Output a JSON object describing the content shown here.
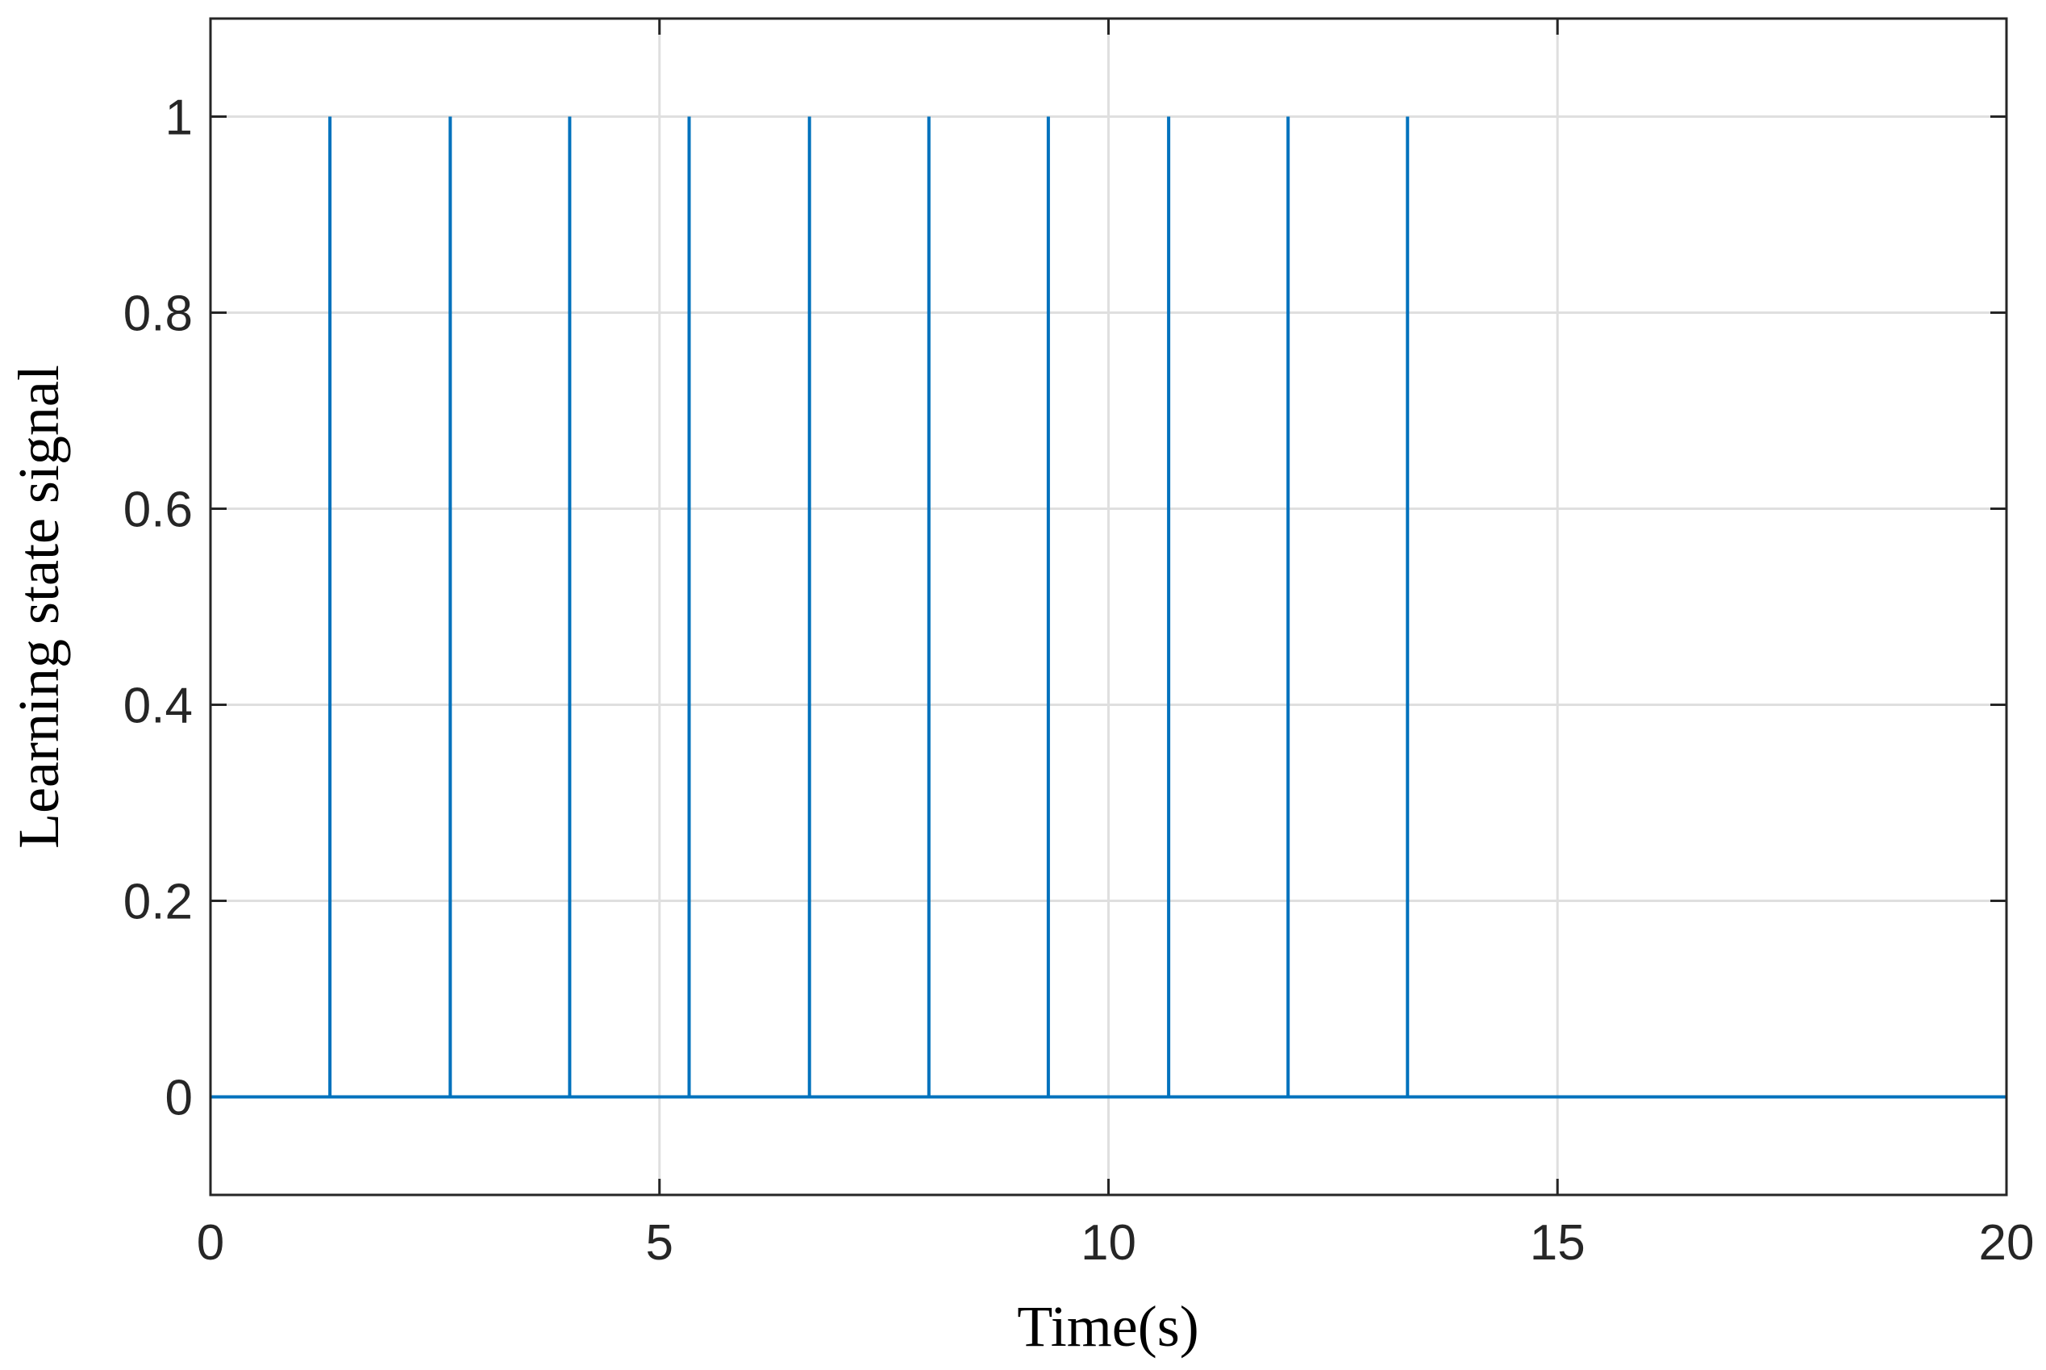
{
  "chart_data": {
    "type": "line",
    "xlabel": "Time(s)",
    "ylabel": "Learning state signal",
    "x": [
      0,
      1.33,
      1.33,
      1.33,
      2.67,
      2.67,
      2.67,
      4,
      4,
      4,
      5.33,
      5.33,
      5.33,
      6.67,
      6.67,
      6.67,
      8,
      8,
      8,
      9.33,
      9.33,
      9.33,
      10.67,
      10.67,
      10.67,
      12,
      12,
      12,
      13.33,
      13.33,
      13.33,
      20
    ],
    "series": [
      {
        "color": "#0072bd",
        "values": [
          0,
          0,
          1,
          0,
          0,
          1,
          0,
          0,
          1,
          0,
          0,
          1,
          0,
          0,
          1,
          0,
          0,
          1,
          0,
          0,
          1,
          0,
          0,
          1,
          0,
          0,
          1,
          0,
          0,
          1,
          0,
          0
        ]
      }
    ],
    "xlim": [
      0,
      20
    ],
    "xticks": [
      0,
      5,
      10,
      15,
      20
    ],
    "ylim": [
      -0.1,
      1.1
    ],
    "yticks": [
      0,
      0.2,
      0.4,
      0.6,
      0.8,
      1
    ],
    "grid": true
  }
}
